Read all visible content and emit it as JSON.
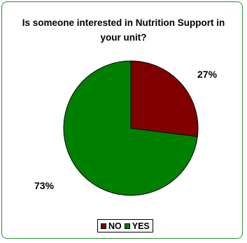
{
  "chart_data": {
    "type": "pie",
    "title": "Is someone interested in Nutrition Support in your unit?",
    "slices": [
      {
        "label": "NO",
        "value": 27,
        "display": "27%",
        "color": "#800000"
      },
      {
        "label": "YES",
        "value": 73,
        "display": "73%",
        "color": "#008000"
      }
    ],
    "legend_position": "bottom"
  }
}
